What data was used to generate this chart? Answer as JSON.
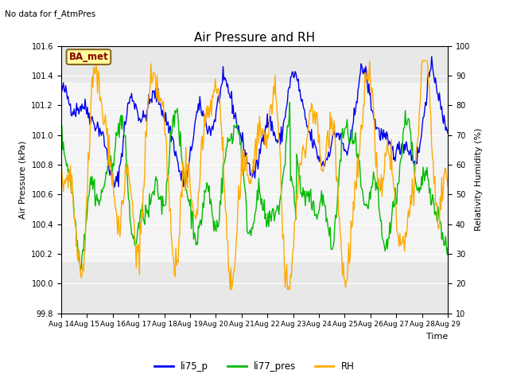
{
  "title": "Air Pressure and RH",
  "top_left_text": "No data for f_AtmPres",
  "box_label": "BA_met",
  "xlabel": "Time",
  "ylabel_left": "Air Pressure (kPa)",
  "ylabel_right": "Relativity Humidity (%)",
  "ylim_left": [
    99.8,
    101.6
  ],
  "ylim_right": [
    10,
    100
  ],
  "yticks_left": [
    99.8,
    100.0,
    100.2,
    100.4,
    100.6,
    100.8,
    101.0,
    101.2,
    101.4,
    101.6
  ],
  "yticks_right": [
    10,
    20,
    30,
    40,
    50,
    60,
    70,
    80,
    90,
    100
  ],
  "xtick_labels": [
    "Aug 14",
    "Aug 15",
    "Aug 16",
    "Aug 17",
    "Aug 18",
    "Aug 19",
    "Aug 20",
    "Aug 21",
    "Aug 22",
    "Aug 23",
    "Aug 24",
    "Aug 25",
    "Aug 26",
    "Aug 27",
    "Aug 28",
    "Aug 29"
  ],
  "color_blue": "#0000ee",
  "color_green": "#00bb00",
  "color_orange": "#ffaa00",
  "legend_labels": [
    "li75_p",
    "li77_pres",
    "RH"
  ],
  "shade_band_lower": 100.15,
  "shade_band_upper": 101.35,
  "plot_bg_color": "#e8e8e8",
  "shade_color": "#d0d0d0",
  "box_bg_color": "#ffff99",
  "box_border_color": "#886622",
  "box_text_color": "#880000"
}
